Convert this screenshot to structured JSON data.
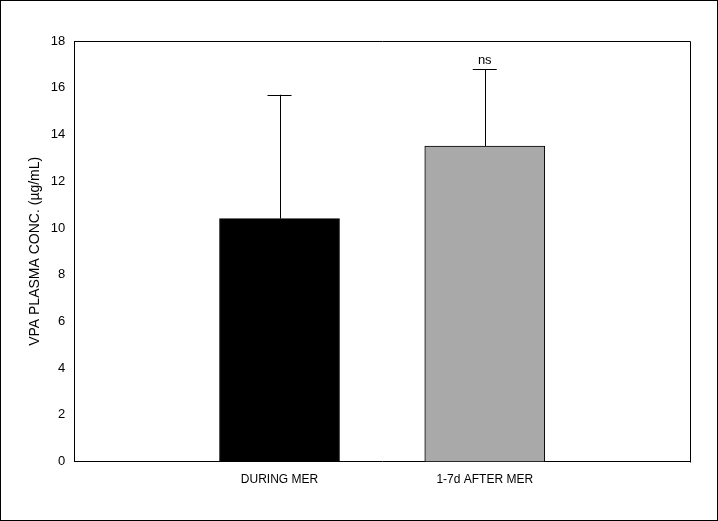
{
  "chart_data": {
    "type": "bar",
    "categories": [
      "DURING MER",
      "1-7d AFTER MER"
    ],
    "values": [
      10.4,
      13.5
    ],
    "errors": [
      5.3,
      3.3
    ],
    "colors": [
      "#000000",
      "#a9a9a9"
    ],
    "y_label": "VPA PLASMA CONC. (µg/mL)",
    "ylim": [
      0,
      18
    ],
    "yticks": [
      0,
      2,
      4,
      6,
      8,
      10,
      12,
      14,
      16,
      18
    ],
    "annotations": [
      {
        "text": "ns",
        "category": "1-7d AFTER MER"
      }
    ],
    "grid": false
  }
}
